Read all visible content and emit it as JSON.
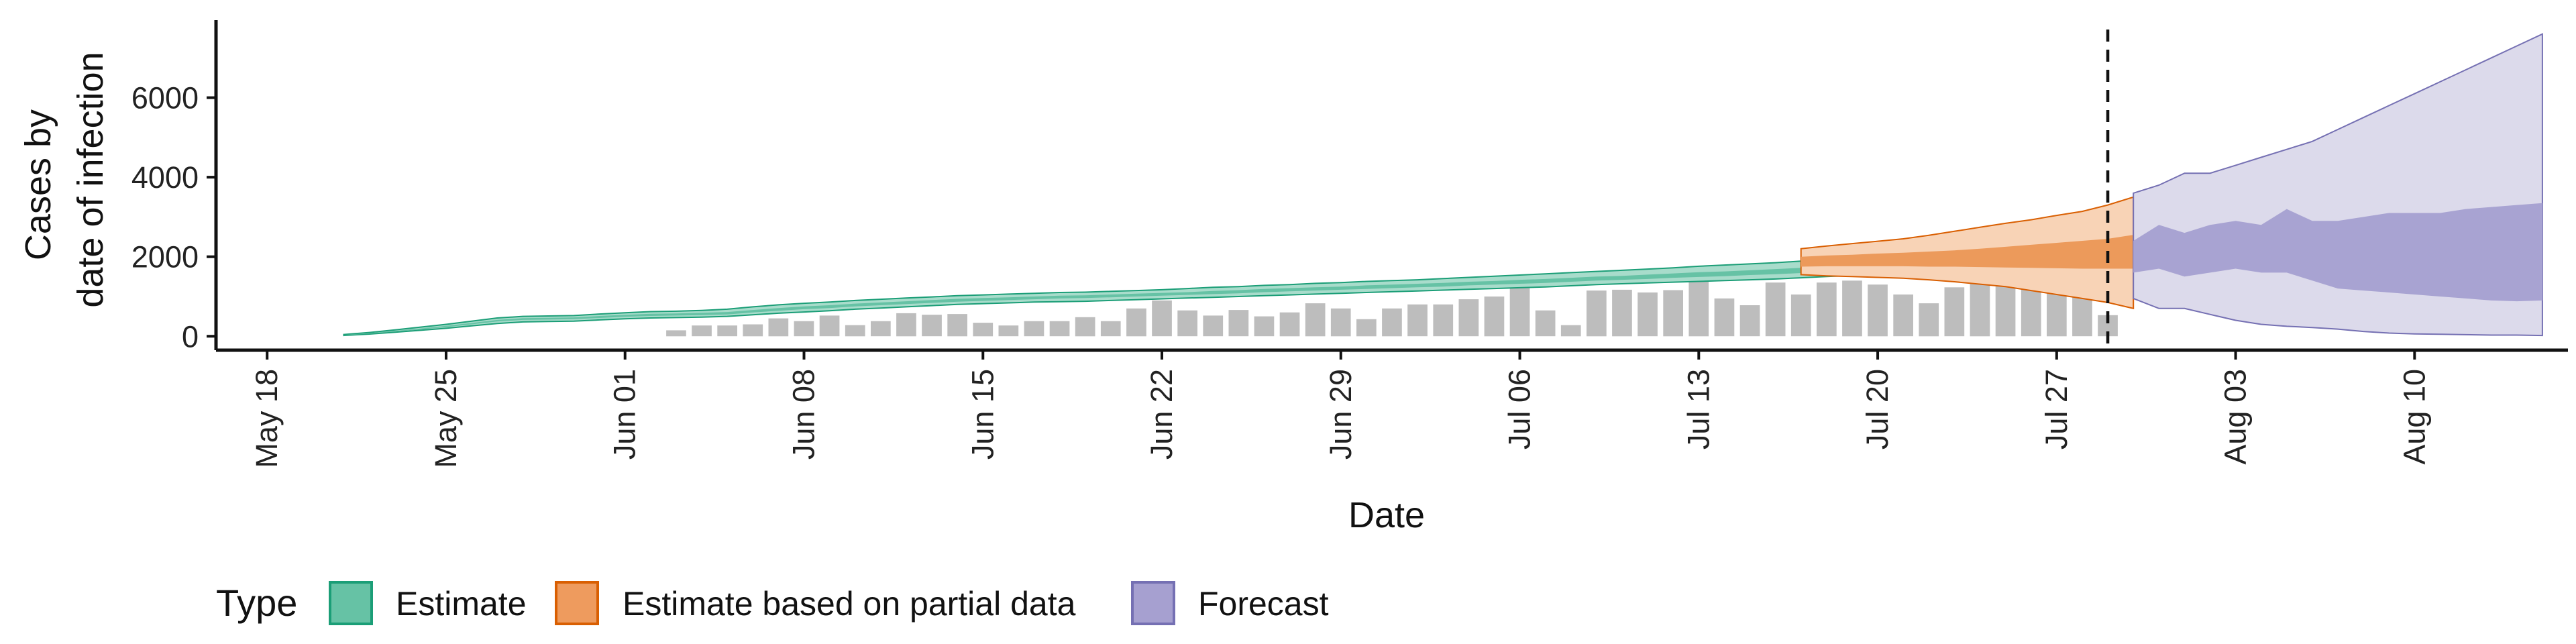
{
  "chart_data": {
    "type": "area",
    "xlabel": "Date",
    "ylabel_lines": [
      "Cases by",
      "date of infection"
    ],
    "x_ticks": [
      "May 18",
      "May 25",
      "Jun 01",
      "Jun 08",
      "Jun 15",
      "Jun 22",
      "Jun 29",
      "Jul 06",
      "Jul 13",
      "Jul 20",
      "Jul 27",
      "Aug 03",
      "Aug 10"
    ],
    "x_tick_dates": [
      "2020-05-18",
      "2020-05-25",
      "2020-06-01",
      "2020-06-08",
      "2020-06-15",
      "2020-06-22",
      "2020-06-29",
      "2020-07-06",
      "2020-07-13",
      "2020-07-20",
      "2020-07-27",
      "2020-08-03",
      "2020-08-10"
    ],
    "y_ticks": [
      0,
      2000,
      4000,
      6000
    ],
    "xlim": [
      "2020-05-16",
      "2020-08-16"
    ],
    "ylim": [
      -350,
      7950
    ],
    "forecast_date": "2020-07-29",
    "grid": false,
    "legend": {
      "title": "Type",
      "position": "bottom-left",
      "entries": [
        {
          "label": "Estimate",
          "fill": "#66C2A5",
          "stroke": "#1B9E77"
        },
        {
          "label": "Estimate based on partial data",
          "fill": "#EE9B5E",
          "stroke": "#D95F02"
        },
        {
          "label": "Forecast",
          "fill": "#A6A0D0",
          "stroke": "#7570B3"
        }
      ]
    },
    "colors": {
      "estimate_outer": "#a8dccb",
      "estimate_inner": "#66c2a5",
      "estimate_line": "#1B9E77",
      "partial_outer": "#f8d3b6",
      "partial_inner": "#ec9a5b",
      "partial_line": "#D95F02",
      "forecast_outer": "#dcdaeb",
      "forecast_inner": "#a8a3d2",
      "forecast_line": "#7570B3",
      "bars": "#bdbdbd",
      "vline": "#111111"
    },
    "bars": {
      "start_date": "2020-06-03",
      "values": [
        150,
        270,
        270,
        300,
        450,
        380,
        520,
        280,
        380,
        580,
        540,
        560,
        340,
        270,
        380,
        380,
        480,
        380,
        700,
        900,
        650,
        520,
        660,
        500,
        600,
        830,
        700,
        430,
        700,
        800,
        800,
        930,
        1000,
        1230,
        650,
        280,
        1150,
        1170,
        1100,
        1160,
        1400,
        950,
        780,
        1350,
        1050,
        1350,
        1400,
        1300,
        1050,
        830,
        1230,
        1550,
        1450,
        1790,
        2000,
        1230,
        530
      ]
    },
    "series": [
      {
        "name": "Estimate",
        "start_date": "2020-05-21",
        "outer_low": [
          20,
          55,
          100,
          150,
          200,
          260,
          320,
          360,
          370,
          380,
          410,
          440,
          460,
          470,
          480,
          500,
          540,
          580,
          610,
          640,
          680,
          710,
          740,
          770,
          800,
          820,
          840,
          860,
          870,
          880,
          900,
          920,
          940,
          960,
          980,
          1000,
          1020,
          1040,
          1060,
          1080,
          1100,
          1120,
          1140,
          1160,
          1180,
          1200,
          1220,
          1240,
          1270,
          1300,
          1320,
          1340,
          1360,
          1380,
          1400,
          1420,
          1440,
          1470,
          1500,
          1530,
          1550,
          1580,
          1610,
          1640,
          1660,
          1680,
          1700
        ],
        "inner_low": [
          25,
          65,
          115,
          170,
          230,
          300,
          370,
          410,
          420,
          430,
          460,
          490,
          510,
          520,
          530,
          550,
          600,
          640,
          680,
          710,
          750,
          780,
          810,
          840,
          870,
          890,
          910,
          930,
          950,
          960,
          980,
          1000,
          1020,
          1040,
          1060,
          1080,
          1110,
          1130,
          1150,
          1170,
          1190,
          1210,
          1230,
          1250,
          1280,
          1300,
          1320,
          1340,
          1370,
          1400,
          1420,
          1440,
          1470,
          1490,
          1510,
          1540,
          1560,
          1590,
          1620,
          1660,
          1690,
          1720,
          1750,
          1780,
          1800,
          1820,
          1840
        ],
        "inner_high": [
          35,
          80,
          135,
          195,
          260,
          335,
          410,
          455,
          465,
          475,
          510,
          540,
          565,
          575,
          590,
          610,
          660,
          710,
          750,
          780,
          820,
          850,
          880,
          910,
          940,
          960,
          980,
          1000,
          1020,
          1030,
          1050,
          1070,
          1090,
          1110,
          1140,
          1160,
          1190,
          1210,
          1230,
          1250,
          1280,
          1300,
          1320,
          1340,
          1370,
          1390,
          1420,
          1440,
          1470,
          1500,
          1520,
          1550,
          1580,
          1610,
          1630,
          1660,
          1690,
          1720,
          1750,
          1800,
          1830,
          1860,
          1890,
          1920,
          1950,
          1970,
          1990
        ],
        "outer_high": [
          45,
          95,
          160,
          230,
          300,
          380,
          460,
          500,
          510,
          520,
          560,
          590,
          620,
          630,
          650,
          680,
          740,
          790,
          830,
          860,
          900,
          930,
          960,
          990,
          1020,
          1040,
          1060,
          1080,
          1100,
          1110,
          1130,
          1150,
          1170,
          1200,
          1230,
          1250,
          1280,
          1300,
          1330,
          1350,
          1380,
          1400,
          1420,
          1450,
          1480,
          1510,
          1540,
          1570,
          1600,
          1630,
          1660,
          1690,
          1720,
          1760,
          1790,
          1820,
          1850,
          1890,
          1930,
          1980,
          2010,
          2050,
          2080,
          2110,
          2140,
          2160,
          2180
        ]
      },
      {
        "name": "Estimate based on partial data",
        "start_date": "2020-07-17",
        "outer_low": [
          1550,
          1520,
          1500,
          1480,
          1460,
          1420,
          1370,
          1310,
          1250,
          1150,
          1050,
          950,
          850,
          700
        ],
        "inner_low": [
          1750,
          1760,
          1760,
          1760,
          1760,
          1750,
          1750,
          1740,
          1730,
          1720,
          1710,
          1700,
          1700,
          1700
        ],
        "inner_high": [
          2000,
          2030,
          2050,
          2080,
          2100,
          2130,
          2160,
          2200,
          2250,
          2300,
          2350,
          2400,
          2450,
          2550
        ],
        "outer_high": [
          2200,
          2270,
          2330,
          2390,
          2450,
          2540,
          2640,
          2740,
          2840,
          2930,
          3040,
          3140,
          3300,
          3500
        ]
      },
      {
        "name": "Forecast",
        "start_date": "2020-07-30",
        "outer_low": [
          950,
          700,
          700,
          550,
          400,
          300,
          250,
          220,
          180,
          120,
          80,
          60,
          50,
          40,
          30,
          30,
          20
        ],
        "inner_low": [
          1600,
          1700,
          1500,
          1600,
          1700,
          1600,
          1600,
          1400,
          1200,
          1150,
          1100,
          1050,
          1000,
          950,
          900,
          880,
          900
        ],
        "inner_high": [
          2400,
          2800,
          2600,
          2800,
          2900,
          2800,
          3200,
          2900,
          2900,
          3000,
          3100,
          3100,
          3100,
          3200,
          3250,
          3300,
          3350
        ],
        "outer_high": [
          3600,
          3800,
          4100,
          4100,
          4300,
          4500,
          4700,
          4900,
          5200,
          5500,
          5800,
          6100,
          6400,
          6700,
          7000,
          7300,
          7600
        ]
      }
    ]
  }
}
